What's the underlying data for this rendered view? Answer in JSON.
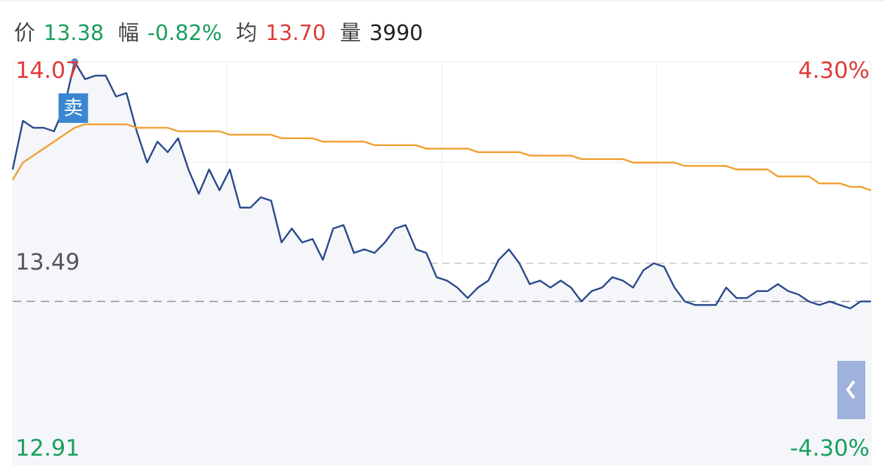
{
  "header": {
    "items": [
      {
        "label": "价",
        "value": "13.38",
        "color": "#1a9e5f"
      },
      {
        "label": "幅",
        "value": "-0.82%",
        "color": "#1a9e5f"
      },
      {
        "label": "均",
        "value": "13.70",
        "color": "#e03a3a"
      },
      {
        "label": "量",
        "value": "3990",
        "color": "#222222"
      }
    ]
  },
  "chart_data": {
    "type": "line",
    "ylim": [
      12.91,
      14.07
    ],
    "yticks": [
      12.91,
      13.49,
      14.07
    ],
    "y2lim": [
      -4.3,
      4.3
    ],
    "y2ticks": [
      {
        "value": -4.3,
        "label": "-4.30%"
      },
      {
        "value": 4.3,
        "label": "4.30%"
      }
    ],
    "up_color": "#e03a3a",
    "down_color": "#1a9e5f",
    "flat_color": "#555555",
    "marker_label": "卖",
    "series": [
      {
        "name": "价",
        "color": "#2b4a8b",
        "values": [
          13.76,
          13.9,
          13.88,
          13.88,
          13.87,
          13.94,
          14.07,
          14.02,
          14.03,
          14.03,
          13.97,
          13.98,
          13.87,
          13.78,
          13.84,
          13.81,
          13.85,
          13.76,
          13.69,
          13.76,
          13.7,
          13.76,
          13.65,
          13.65,
          13.68,
          13.67,
          13.55,
          13.59,
          13.55,
          13.56,
          13.5,
          13.59,
          13.6,
          13.52,
          13.53,
          13.52,
          13.55,
          13.59,
          13.6,
          13.53,
          13.52,
          13.45,
          13.44,
          13.42,
          13.39,
          13.42,
          13.44,
          13.5,
          13.53,
          13.49,
          13.43,
          13.44,
          13.42,
          13.44,
          13.42,
          13.38,
          13.41,
          13.42,
          13.45,
          13.44,
          13.42,
          13.47,
          13.49,
          13.48,
          13.42,
          13.38,
          13.37,
          13.37,
          13.37,
          13.42,
          13.39,
          13.39,
          13.41,
          13.41,
          13.43,
          13.41,
          13.4,
          13.38,
          13.37,
          13.38,
          13.37,
          13.36,
          13.38,
          13.38
        ]
      },
      {
        "name": "均",
        "color": "#f0a030",
        "values": [
          13.73,
          13.78,
          13.8,
          13.82,
          13.84,
          13.86,
          13.88,
          13.89,
          13.89,
          13.89,
          13.89,
          13.89,
          13.88,
          13.88,
          13.88,
          13.88,
          13.87,
          13.87,
          13.87,
          13.87,
          13.87,
          13.86,
          13.86,
          13.86,
          13.86,
          13.86,
          13.85,
          13.85,
          13.85,
          13.85,
          13.84,
          13.84,
          13.84,
          13.84,
          13.84,
          13.83,
          13.83,
          13.83,
          13.83,
          13.83,
          13.82,
          13.82,
          13.82,
          13.82,
          13.82,
          13.81,
          13.81,
          13.81,
          13.81,
          13.81,
          13.8,
          13.8,
          13.8,
          13.8,
          13.8,
          13.79,
          13.79,
          13.79,
          13.79,
          13.79,
          13.78,
          13.78,
          13.78,
          13.78,
          13.78,
          13.77,
          13.77,
          13.77,
          13.77,
          13.77,
          13.76,
          13.76,
          13.76,
          13.76,
          13.74,
          13.74,
          13.74,
          13.74,
          13.72,
          13.72,
          13.72,
          13.71,
          13.71,
          13.7
        ]
      }
    ]
  }
}
